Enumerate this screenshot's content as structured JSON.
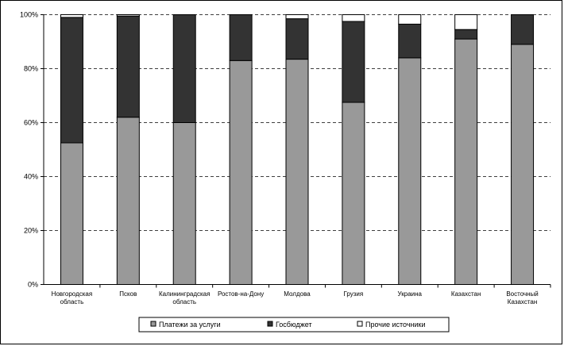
{
  "chart_data": {
    "type": "bar",
    "stacked": "percent",
    "categories": [
      [
        "Новгородская",
        "область"
      ],
      [
        "Псков"
      ],
      [
        "Калининградская",
        "область"
      ],
      [
        "Ростов-на-Дону"
      ],
      [
        "Молдова"
      ],
      [
        "Грузия"
      ],
      [
        "Украина"
      ],
      [
        "Казахстан"
      ],
      [
        "Восточный",
        "Казахстан"
      ]
    ],
    "series": [
      {
        "name": "Платежи за услуги",
        "color": "#999999",
        "values": [
          52.5,
          62,
          60,
          83,
          83.5,
          67.5,
          84,
          91,
          89
        ]
      },
      {
        "name": "Госбюджет",
        "color": "#333333",
        "values": [
          46.5,
          37.5,
          40,
          17,
          15,
          30,
          12.5,
          3.5,
          11
        ]
      },
      {
        "name": "Прочие источники",
        "color": "#ffffff",
        "values": [
          1,
          0.5,
          0,
          0,
          1.5,
          2.5,
          3.5,
          5.5,
          0
        ]
      }
    ],
    "yticks": [
      "0%",
      "20%",
      "40%",
      "60%",
      "80%",
      "100%"
    ],
    "ylim": [
      0,
      100
    ],
    "grid": "dashed-horizontal",
    "legend_position": "bottom"
  }
}
